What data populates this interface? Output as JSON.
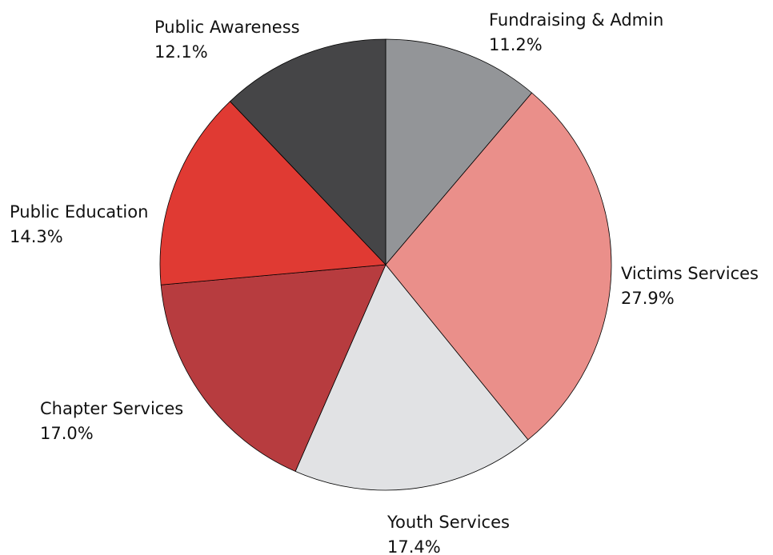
{
  "chart_data": {
    "type": "pie",
    "title": "",
    "start_angle_deg": 0,
    "direction": "clockwise",
    "legend": "none",
    "slices": [
      {
        "label": "Fundraising & Admin",
        "value": 11.2,
        "value_text": "11.2%",
        "color": "#939598"
      },
      {
        "label": "Victims Services",
        "value": 27.9,
        "value_text": "27.9%",
        "color": "#ea8f8a"
      },
      {
        "label": "Youth Services",
        "value": 17.4,
        "value_text": "17.4%",
        "color": "#e1e2e4"
      },
      {
        "label": "Chapter Services",
        "value": 17.0,
        "value_text": "17.0%",
        "color": "#b73c3f"
      },
      {
        "label": "Public Education",
        "value": 14.3,
        "value_text": "14.3%",
        "color": "#e03a33"
      },
      {
        "label": "Public Awareness",
        "value": 12.1,
        "value_text": "12.1%",
        "color": "#454547"
      }
    ]
  }
}
